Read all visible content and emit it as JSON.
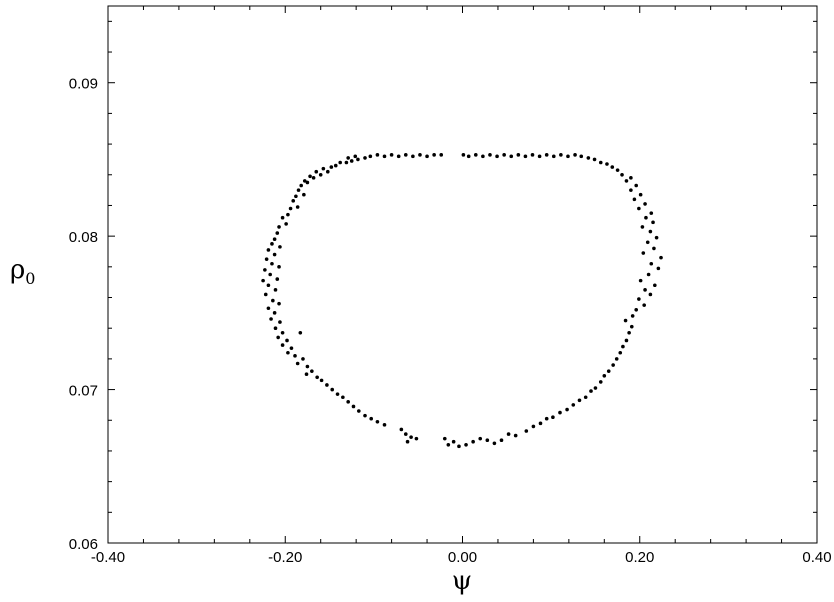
{
  "chart_data": {
    "type": "scatter",
    "title": "",
    "xlabel": "ψ",
    "ylabel": "ρ",
    "ylabel_subscript": "0",
    "xlim": [
      -0.4,
      0.4
    ],
    "ylim": [
      0.06,
      0.095
    ],
    "grid": false,
    "x_ticks": [
      {
        "value": -0.4,
        "label": "-0.40"
      },
      {
        "value": -0.2,
        "label": "-0.20"
      },
      {
        "value": 0.0,
        "label": "0.00"
      },
      {
        "value": 0.2,
        "label": "0.20"
      },
      {
        "value": 0.4,
        "label": "0.40"
      }
    ],
    "y_ticks": [
      {
        "value": 0.06,
        "label": "0.06"
      },
      {
        "value": 0.07,
        "label": "0.07"
      },
      {
        "value": 0.08,
        "label": "0.08"
      },
      {
        "value": 0.09,
        "label": "0.09"
      }
    ],
    "points": [
      [
        -0.024,
        0.0853
      ],
      [
        -0.032,
        0.0853
      ],
      [
        -0.04,
        0.0852
      ],
      [
        -0.048,
        0.0853
      ],
      [
        -0.056,
        0.0852
      ],
      [
        -0.064,
        0.0853
      ],
      [
        -0.072,
        0.0852
      ],
      [
        -0.08,
        0.0853
      ],
      [
        -0.088,
        0.0852
      ],
      [
        -0.096,
        0.0853
      ],
      [
        -0.104,
        0.0852
      ],
      [
        -0.11,
        0.0851
      ],
      [
        -0.118,
        0.085
      ],
      [
        -0.125,
        0.0849
      ],
      [
        -0.131,
        0.0848
      ],
      [
        -0.138,
        0.0848
      ],
      [
        -0.121,
        0.0852
      ],
      [
        -0.129,
        0.0851
      ],
      [
        -0.143,
        0.0846
      ],
      [
        -0.148,
        0.0845
      ],
      [
        -0.152,
        0.0842
      ],
      [
        -0.157,
        0.0844
      ],
      [
        -0.16,
        0.084
      ],
      [
        -0.165,
        0.0842
      ],
      [
        -0.168,
        0.0838
      ],
      [
        -0.172,
        0.0839
      ],
      [
        -0.175,
        0.0835
      ],
      [
        -0.178,
        0.0836
      ],
      [
        -0.182,
        0.0833
      ],
      [
        -0.185,
        0.083
      ],
      [
        -0.179,
        0.0827
      ],
      [
        -0.188,
        0.0826
      ],
      [
        -0.191,
        0.0823
      ],
      [
        -0.186,
        0.0819
      ],
      [
        -0.194,
        0.0818
      ],
      [
        -0.197,
        0.0814
      ],
      [
        -0.203,
        0.0812
      ],
      [
        -0.199,
        0.0808
      ],
      [
        -0.207,
        0.0806
      ],
      [
        -0.209,
        0.0802
      ],
      [
        -0.212,
        0.0798
      ],
      [
        -0.215,
        0.0795
      ],
      [
        -0.206,
        0.0793
      ],
      [
        -0.219,
        0.0791
      ],
      [
        -0.212,
        0.0788
      ],
      [
        -0.221,
        0.0785
      ],
      [
        -0.215,
        0.0782
      ],
      [
        -0.207,
        0.078
      ],
      [
        -0.223,
        0.0778
      ],
      [
        -0.217,
        0.0775
      ],
      [
        -0.209,
        0.0772
      ],
      [
        -0.225,
        0.0771
      ],
      [
        -0.219,
        0.0768
      ],
      [
        -0.211,
        0.0765
      ],
      [
        -0.222,
        0.0762
      ],
      [
        -0.214,
        0.0758
      ],
      [
        -0.207,
        0.0756
      ],
      [
        -0.219,
        0.0753
      ],
      [
        -0.212,
        0.075
      ],
      [
        -0.216,
        0.0746
      ],
      [
        -0.206,
        0.0744
      ],
      [
        -0.211,
        0.074
      ],
      [
        -0.203,
        0.0737
      ],
      [
        -0.208,
        0.0734
      ],
      [
        -0.198,
        0.0732
      ],
      [
        -0.203,
        0.0729
      ],
      [
        -0.193,
        0.0727
      ],
      [
        -0.197,
        0.0724
      ],
      [
        -0.189,
        0.0722
      ],
      [
        -0.183,
        0.0737
      ],
      [
        -0.18,
        0.072
      ],
      [
        -0.186,
        0.0717
      ],
      [
        -0.175,
        0.0715
      ],
      [
        -0.17,
        0.0712
      ],
      [
        -0.176,
        0.071
      ],
      [
        -0.164,
        0.0708
      ],
      [
        -0.159,
        0.0706
      ],
      [
        -0.153,
        0.0703
      ],
      [
        -0.147,
        0.07
      ],
      [
        -0.141,
        0.0697
      ],
      [
        -0.135,
        0.0695
      ],
      [
        -0.129,
        0.0692
      ],
      [
        -0.123,
        0.0689
      ],
      [
        -0.117,
        0.0686
      ],
      [
        -0.11,
        0.0683
      ],
      [
        -0.103,
        0.0681
      ],
      [
        -0.096,
        0.0679
      ],
      [
        -0.088,
        0.0677
      ],
      [
        -0.069,
        0.0674
      ],
      [
        -0.064,
        0.0671
      ],
      [
        -0.058,
        0.0669
      ],
      [
        -0.052,
        0.0668
      ],
      [
        -0.062,
        0.0666
      ],
      [
        -0.02,
        0.0668
      ],
      [
        -0.016,
        0.0664
      ],
      [
        -0.01,
        0.0666
      ],
      [
        -0.004,
        0.0663
      ],
      [
        0.004,
        0.0664
      ],
      [
        0.012,
        0.0666
      ],
      [
        0.02,
        0.0668
      ],
      [
        0.028,
        0.0667
      ],
      [
        0.036,
        0.0665
      ],
      [
        0.044,
        0.0667
      ],
      [
        0.052,
        0.0671
      ],
      [
        0.06,
        0.067
      ],
      [
        0.072,
        0.0673
      ],
      [
        0.08,
        0.0676
      ],
      [
        0.088,
        0.0678
      ],
      [
        0.095,
        0.0681
      ],
      [
        0.102,
        0.0682
      ],
      [
        0.11,
        0.0685
      ],
      [
        0.118,
        0.0687
      ],
      [
        0.125,
        0.069
      ],
      [
        0.132,
        0.0693
      ],
      [
        0.139,
        0.0695
      ],
      [
        0.145,
        0.0699
      ],
      [
        0.15,
        0.0701
      ],
      [
        0.156,
        0.0705
      ],
      [
        0.16,
        0.0709
      ],
      [
        0.165,
        0.0712
      ],
      [
        0.17,
        0.0716
      ],
      [
        0.174,
        0.072
      ],
      [
        0.178,
        0.0724
      ],
      [
        0.181,
        0.0728
      ],
      [
        0.185,
        0.0732
      ],
      [
        0.188,
        0.0737
      ],
      [
        0.191,
        0.0741
      ],
      [
        0.184,
        0.0745
      ],
      [
        0.192,
        0.0748
      ],
      [
        0.196,
        0.0752
      ],
      [
        0.205,
        0.0755
      ],
      [
        0.199,
        0.0759
      ],
      [
        0.212,
        0.0762
      ],
      [
        0.206,
        0.0765
      ],
      [
        0.217,
        0.0768
      ],
      [
        0.201,
        0.0771
      ],
      [
        0.21,
        0.0775
      ],
      [
        0.221,
        0.0779
      ],
      [
        0.213,
        0.0782
      ],
      [
        0.224,
        0.0786
      ],
      [
        0.204,
        0.0789
      ],
      [
        0.216,
        0.0792
      ],
      [
        0.209,
        0.0796
      ],
      [
        0.219,
        0.0799
      ],
      [
        0.212,
        0.0803
      ],
      [
        0.203,
        0.0806
      ],
      [
        0.215,
        0.0809
      ],
      [
        0.207,
        0.0812
      ],
      [
        0.213,
        0.0815
      ],
      [
        0.199,
        0.0818
      ],
      [
        0.206,
        0.0821
      ],
      [
        0.194,
        0.0824
      ],
      [
        0.201,
        0.0827
      ],
      [
        0.19,
        0.083
      ],
      [
        0.196,
        0.0833
      ],
      [
        0.185,
        0.0836
      ],
      [
        0.19,
        0.0838
      ],
      [
        0.18,
        0.084
      ],
      [
        0.175,
        0.0843
      ],
      [
        0.169,
        0.0845
      ],
      [
        0.163,
        0.0847
      ],
      [
        0.156,
        0.0848
      ],
      [
        0.149,
        0.085
      ],
      [
        0.142,
        0.0851
      ],
      [
        0.134,
        0.0852
      ],
      [
        0.127,
        0.0853
      ],
      [
        0.119,
        0.0852
      ],
      [
        0.111,
        0.0853
      ],
      [
        0.103,
        0.0852
      ],
      [
        0.095,
        0.0853
      ],
      [
        0.087,
        0.0852
      ],
      [
        0.079,
        0.0853
      ],
      [
        0.071,
        0.0852
      ],
      [
        0.063,
        0.0853
      ],
      [
        0.055,
        0.0852
      ],
      [
        0.047,
        0.0853
      ],
      [
        0.039,
        0.0852
      ],
      [
        0.031,
        0.0853
      ],
      [
        0.023,
        0.0852
      ],
      [
        0.015,
        0.0853
      ],
      [
        0.007,
        0.0852
      ],
      [
        0.001,
        0.0853
      ]
    ]
  }
}
